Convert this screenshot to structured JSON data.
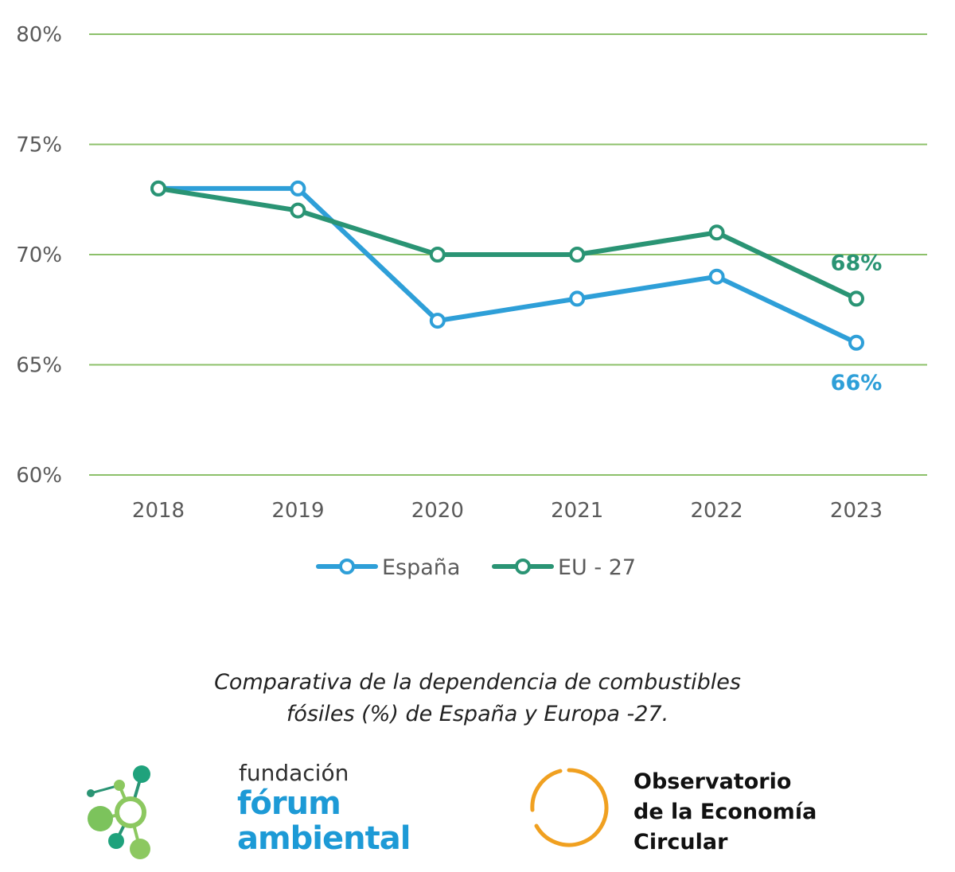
{
  "chart_data": {
    "type": "line",
    "categories": [
      "2018",
      "2019",
      "2020",
      "2021",
      "2022",
      "2023"
    ],
    "series": [
      {
        "name": "España",
        "values": [
          73,
          73,
          67,
          68,
          69,
          66
        ],
        "color": "#2e9fd8",
        "end_label": "66%"
      },
      {
        "name": "EU - 27",
        "values": [
          73,
          72,
          70,
          70,
          71,
          68
        ],
        "color": "#2a9474",
        "end_label": "68%"
      }
    ],
    "y_ticks": [
      80,
      75,
      70,
      65,
      60
    ],
    "y_tick_labels": [
      "80%",
      "75%",
      "70%",
      "65%",
      "60%"
    ],
    "ylim": [
      60,
      80
    ],
    "grid": true,
    "grid_color": "#8cc06a",
    "legend": "bottom-center"
  },
  "caption": {
    "line1": "Comparativa de la dependencia de combustibles",
    "line2": "fósiles (%) de España y Europa -27."
  },
  "logos": {
    "fundacion": {
      "small": "fundación",
      "line1": "fórum",
      "line2": "ambiental"
    },
    "observatorio": {
      "line1": "Observatorio",
      "line2": "de la Economía",
      "line3": "Circular"
    }
  }
}
